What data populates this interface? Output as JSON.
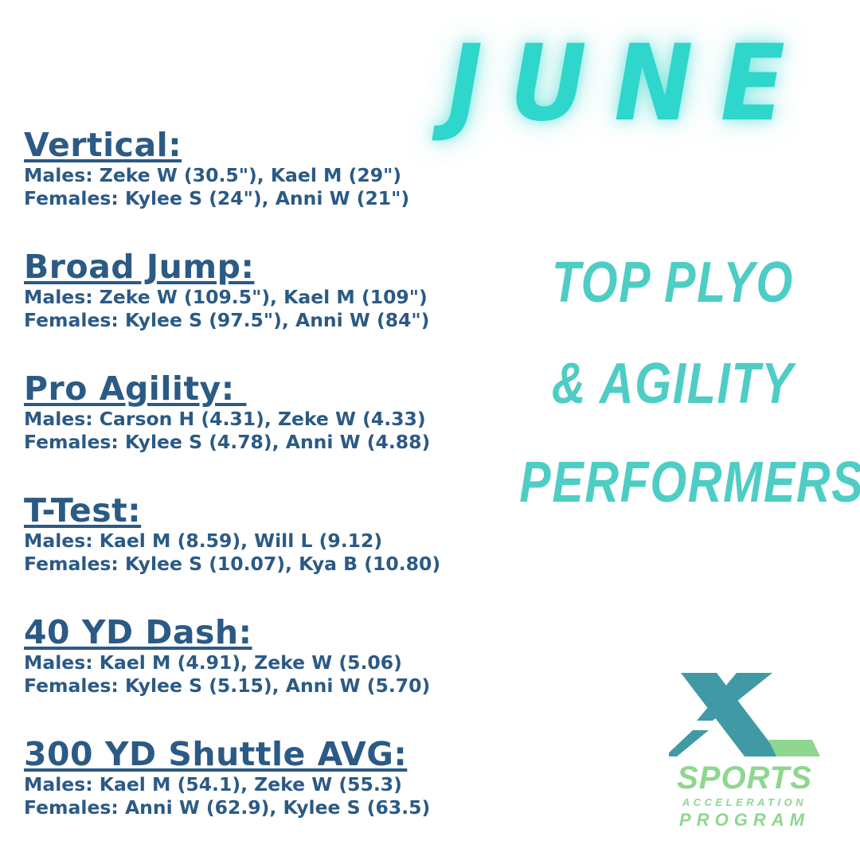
{
  "title": "JUNE",
  "tagline": [
    "TOP PLYO",
    "& AGILITY",
    "PERFORMERS"
  ],
  "sections": [
    {
      "heading": "Vertical:",
      "males": "Males: Zeke W (30.5\"), Kael M (29\")",
      "females": "Females: Kylee S (24\"), Anni W (21\")"
    },
    {
      "heading": "Broad Jump:",
      "males": "Males: Zeke W (109.5\"), Kael M (109\")",
      "females": "Females: Kylee S (97.5\"), Anni W (84\")"
    },
    {
      "heading": "Pro Agility: ",
      "males": "Males: Carson H (4.31), Zeke W (4.33)",
      "females": "Females: Kylee S (4.78), Anni W (4.88)"
    },
    {
      "heading": "T-Test:",
      "males": "Males: Kael M (8.59), Will L (9.12)",
      "females": "Females: Kylee S (10.07), Kya B (10.80)"
    },
    {
      "heading": "40 YD Dash:",
      "males": "Males: Kael M (4.91), Zeke W (5.06)",
      "females": "Females: Kylee S (5.15), Anni W (5.70)"
    },
    {
      "heading": "300 YD Shuttle AVG:",
      "males": "Males: Kael M (54.1), Zeke W (55.3)",
      "females": "Females: Anni W (62.9), Kylee S (63.5)"
    }
  ],
  "logo": {
    "line1": "SPORTS",
    "line2": "ACCELERATION",
    "line3": "PROGRAM"
  },
  "colors": {
    "title": "#2fd6cb",
    "text": "#2b5a85",
    "tagline": "#4ecdc4",
    "logo_teal": "#3f9aa5",
    "logo_green": "#8fd68f"
  }
}
